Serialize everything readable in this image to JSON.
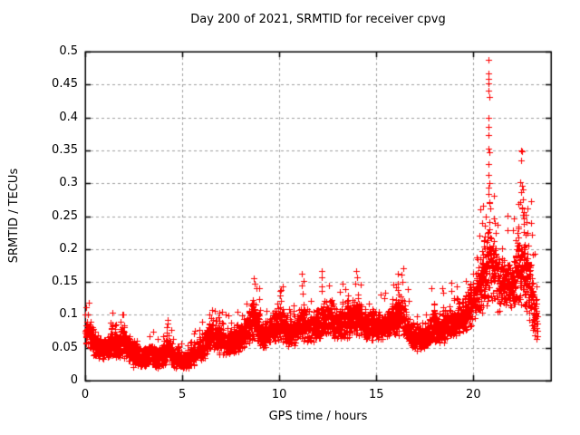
{
  "figure": {
    "background": "#ffffff"
  },
  "chart_data": {
    "type": "scatter",
    "title": "Day 200 of 2021, SRMTID for receiver cpvg",
    "xlabel": "GPS time / hours",
    "ylabel": "SRMTID / TECUs",
    "xlim": [
      0,
      24
    ],
    "ylim": [
      0,
      0.5
    ],
    "xticks": {
      "values": [
        0,
        5,
        10,
        15,
        20
      ],
      "labels": [
        "0",
        "5",
        "10",
        "15",
        "20"
      ]
    },
    "yticks": {
      "values": [
        0,
        0.05,
        0.1,
        0.15,
        0.2,
        0.25,
        0.3,
        0.35,
        0.4,
        0.45,
        0.5
      ],
      "labels": [
        "0",
        "0.05",
        "0.1",
        "0.15",
        "0.2",
        "0.25",
        "0.3",
        "0.35",
        "0.4",
        "0.45",
        "0.5"
      ]
    },
    "grid": {
      "show": true,
      "color": "#a0a0a0",
      "dash": [
        3,
        3
      ]
    },
    "axis_color": "#000000",
    "text_color": "#000000",
    "legend": "none",
    "marker": {
      "shape": "plus",
      "color": "#ff0000",
      "size": 7
    },
    "band_envelope": [
      [
        0.0,
        0.05,
        0.105
      ],
      [
        0.2,
        0.05,
        0.1
      ],
      [
        0.5,
        0.035,
        0.08
      ],
      [
        0.8,
        0.03,
        0.07
      ],
      [
        1.1,
        0.03,
        0.065
      ],
      [
        1.4,
        0.035,
        0.08
      ],
      [
        1.7,
        0.03,
        0.07
      ],
      [
        1.95,
        0.035,
        0.095
      ],
      [
        2.2,
        0.03,
        0.08
      ],
      [
        2.5,
        0.02,
        0.06
      ],
      [
        2.9,
        0.018,
        0.05
      ],
      [
        3.3,
        0.024,
        0.062
      ],
      [
        3.7,
        0.018,
        0.05
      ],
      [
        4.05,
        0.02,
        0.058
      ],
      [
        4.25,
        0.028,
        0.088
      ],
      [
        4.5,
        0.02,
        0.055
      ],
      [
        4.9,
        0.016,
        0.045
      ],
      [
        5.3,
        0.018,
        0.05
      ],
      [
        5.7,
        0.025,
        0.06
      ],
      [
        6.1,
        0.03,
        0.075
      ],
      [
        6.5,
        0.045,
        0.1
      ],
      [
        6.8,
        0.04,
        0.095
      ],
      [
        7.2,
        0.035,
        0.075
      ],
      [
        7.6,
        0.04,
        0.08
      ],
      [
        8.0,
        0.045,
        0.09
      ],
      [
        8.4,
        0.055,
        0.11
      ],
      [
        8.7,
        0.06,
        0.135
      ],
      [
        9.0,
        0.05,
        0.1
      ],
      [
        9.4,
        0.05,
        0.098
      ],
      [
        9.8,
        0.058,
        0.115
      ],
      [
        10.1,
        0.06,
        0.125
      ],
      [
        10.5,
        0.048,
        0.095
      ],
      [
        10.9,
        0.055,
        0.105
      ],
      [
        11.2,
        0.06,
        0.125
      ],
      [
        11.6,
        0.055,
        0.108
      ],
      [
        12.0,
        0.06,
        0.11
      ],
      [
        12.5,
        0.068,
        0.13
      ],
      [
        12.9,
        0.062,
        0.118
      ],
      [
        13.3,
        0.06,
        0.112
      ],
      [
        13.7,
        0.068,
        0.122
      ],
      [
        14.0,
        0.068,
        0.135
      ],
      [
        14.4,
        0.06,
        0.108
      ],
      [
        14.8,
        0.062,
        0.108
      ],
      [
        15.2,
        0.06,
        0.107
      ],
      [
        15.6,
        0.064,
        0.112
      ],
      [
        16.0,
        0.068,
        0.126
      ],
      [
        16.35,
        0.068,
        0.138
      ],
      [
        16.7,
        0.05,
        0.1
      ],
      [
        17.1,
        0.04,
        0.088
      ],
      [
        17.5,
        0.048,
        0.094
      ],
      [
        17.9,
        0.055,
        0.108
      ],
      [
        18.3,
        0.055,
        0.104
      ],
      [
        18.7,
        0.06,
        0.118
      ],
      [
        19.1,
        0.063,
        0.118
      ],
      [
        19.5,
        0.068,
        0.128
      ],
      [
        19.9,
        0.078,
        0.155
      ],
      [
        20.2,
        0.088,
        0.185
      ],
      [
        20.5,
        0.105,
        0.215
      ],
      [
        20.8,
        0.115,
        0.26
      ],
      [
        21.1,
        0.105,
        0.215
      ],
      [
        21.4,
        0.1,
        0.195
      ],
      [
        21.7,
        0.115,
        0.185
      ],
      [
        22.0,
        0.1,
        0.195
      ],
      [
        22.3,
        0.115,
        0.25
      ],
      [
        22.6,
        0.115,
        0.24
      ],
      [
        22.9,
        0.085,
        0.215
      ],
      [
        23.1,
        0.06,
        0.17
      ],
      [
        23.3,
        0.05,
        0.12
      ]
    ],
    "peak_points": [
      [
        0.06,
        0.112
      ],
      [
        1.95,
        0.1
      ],
      [
        4.25,
        0.092
      ],
      [
        6.55,
        0.107
      ],
      [
        8.68,
        0.155
      ],
      [
        8.73,
        0.147
      ],
      [
        10.02,
        0.137
      ],
      [
        11.18,
        0.162
      ],
      [
        11.23,
        0.151
      ],
      [
        12.55,
        0.145
      ],
      [
        13.1,
        0.135
      ],
      [
        13.95,
        0.166
      ],
      [
        14.02,
        0.157
      ],
      [
        16.28,
        0.161
      ],
      [
        16.33,
        0.15
      ],
      [
        17.82,
        0.141
      ],
      [
        18.88,
        0.149
      ],
      [
        19.62,
        0.152
      ],
      [
        20.3,
        0.22
      ],
      [
        20.38,
        0.26
      ],
      [
        20.45,
        0.24
      ],
      [
        20.62,
        0.25
      ],
      [
        20.78,
        0.487
      ],
      [
        20.78,
        0.467
      ],
      [
        20.8,
        0.459
      ],
      [
        20.77,
        0.452
      ],
      [
        20.79,
        0.441
      ],
      [
        20.81,
        0.431
      ],
      [
        20.78,
        0.4
      ],
      [
        20.8,
        0.386
      ],
      [
        20.78,
        0.373
      ],
      [
        20.77,
        0.352
      ],
      [
        20.82,
        0.347
      ],
      [
        20.79,
        0.329
      ],
      [
        20.78,
        0.312
      ],
      [
        20.82,
        0.3
      ],
      [
        20.8,
        0.294
      ],
      [
        20.76,
        0.284
      ],
      [
        20.84,
        0.272
      ],
      [
        20.85,
        0.262
      ],
      [
        21.1,
        0.24
      ],
      [
        21.17,
        0.225
      ],
      [
        22.44,
        0.35
      ],
      [
        22.52,
        0.349
      ],
      [
        22.48,
        0.335
      ],
      [
        22.43,
        0.302
      ],
      [
        22.5,
        0.296
      ],
      [
        22.55,
        0.29
      ],
      [
        22.47,
        0.286
      ],
      [
        22.42,
        0.272
      ],
      [
        22.51,
        0.262
      ],
      [
        22.57,
        0.252
      ],
      [
        22.62,
        0.246
      ],
      [
        22.7,
        0.252
      ],
      [
        22.76,
        0.241
      ],
      [
        22.95,
        0.24
      ],
      [
        23.0,
        0.222
      ],
      [
        23.07,
        0.192
      ]
    ],
    "generation": {
      "seed": 20021,
      "dt_hours": 0.008,
      "t_start": 0.0,
      "t_end": 23.3,
      "extra_point_prob": 0.4,
      "spike_prob": 0.015,
      "cluster_prob": 0.04
    }
  }
}
